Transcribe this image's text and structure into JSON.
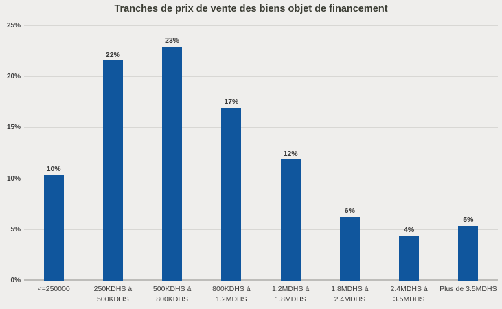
{
  "chart_data": {
    "type": "bar",
    "title": "Tranches de prix de vente des biens objet de financement",
    "categories": [
      "<=250000",
      "250KDHS à 500KDHS",
      "500KDHS à 800KDHS",
      "800KDHS à 1.2MDHS",
      "1.2MDHS à 1.8MDHS",
      "1.8MDHS à 2.4MDHS",
      "2.4MDHS à 3.5MDHS",
      "Plus de 3.5MDHS"
    ],
    "category_lines": [
      [
        "<=250000"
      ],
      [
        "250KDHS à",
        "500KDHS"
      ],
      [
        "500KDHS à",
        "800KDHS"
      ],
      [
        "800KDHS à",
        "1.2MDHS"
      ],
      [
        "1.2MDHS à",
        "1.8MDHS"
      ],
      [
        "1.8MDHS à",
        "2.4MDHS"
      ],
      [
        "2.4MDHS à",
        "3.5MDHS"
      ],
      [
        "Plus de 3.5MDHS"
      ]
    ],
    "value_labels": [
      "10%",
      "22%",
      "23%",
      "17%",
      "12%",
      "6%",
      "4%",
      "5%"
    ],
    "values": [
      10.4,
      21.6,
      23.0,
      17.0,
      11.9,
      6.3,
      4.4,
      5.4
    ],
    "xlabel": "",
    "ylabel": "",
    "ylim": [
      0,
      25
    ],
    "yticks": [
      "0%",
      "5%",
      "10%",
      "15%",
      "20%",
      "25%"
    ],
    "ytick_values": [
      0,
      5,
      10,
      15,
      20,
      25
    ],
    "grid": true,
    "legend_position": "none",
    "bar_color": "#10569D",
    "background_color": "#EFEEEC",
    "gridline_color": "#D8D7D4",
    "axis_line_color": "#BEBDBA",
    "title_color": "#3B3D34",
    "label_color": "#3C3C3C"
  }
}
